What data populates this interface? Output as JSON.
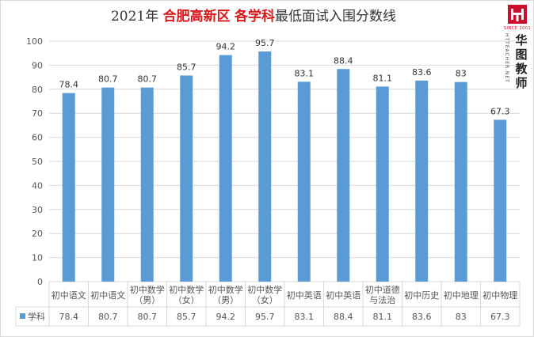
{
  "title": {
    "year": "2021年",
    "highlight1": "合肥高新区",
    "highlight2": "各学科",
    "rest": "最低面试入围分数线"
  },
  "logo": {
    "since": "SINCE 2001",
    "sub": "HTTEACHER.NET",
    "name": "华图教师"
  },
  "colors": {
    "bar": "#5b9bd5",
    "grid": "#d9d9d9",
    "title_accent": "#d7191c"
  },
  "chart_data": {
    "type": "bar",
    "title": "2021年 合肥高新区 各学科最低面试入围分数线",
    "categories": [
      [
        "初中语文"
      ],
      [
        "初中语文"
      ],
      [
        "初中数学",
        "（男）"
      ],
      [
        "初中数学",
        "（女）"
      ],
      [
        "初中数学",
        "（男）"
      ],
      [
        "初中数学",
        "（女）"
      ],
      [
        "初中英语"
      ],
      [
        "初中英语"
      ],
      [
        "初中道德",
        "与法治"
      ],
      [
        "初中历史"
      ],
      [
        "初中地理"
      ],
      [
        "初中物理"
      ]
    ],
    "series": [
      {
        "name": "学科",
        "values": [
          78.4,
          80.7,
          80.7,
          85.7,
          94.2,
          95.7,
          83.1,
          88.4,
          81.1,
          83.6,
          83,
          67.3
        ]
      }
    ],
    "value_labels": [
      "78.4",
      "80.7",
      "80.7",
      "85.7",
      "94.2",
      "95.7",
      "83.1",
      "88.4",
      "81.1",
      "83.6",
      "83",
      "67.3"
    ],
    "ylim": [
      0,
      100
    ],
    "yticks": [
      0,
      10,
      20,
      30,
      40,
      50,
      60,
      70,
      80,
      90,
      100
    ],
    "grid": true,
    "data_table": true
  }
}
